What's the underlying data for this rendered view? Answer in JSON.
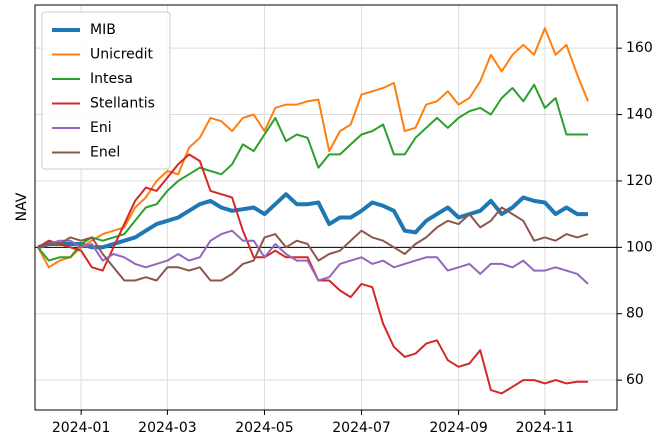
{
  "chart_data": {
    "type": "line",
    "y_label": "NAV",
    "categories": [
      null,
      null,
      null,
      null,
      "2024-01",
      null,
      null,
      null,
      null,
      null,
      null,
      null,
      "2024-03",
      null,
      null,
      null,
      null,
      null,
      null,
      null,
      null,
      "2024-05",
      null,
      null,
      null,
      null,
      null,
      null,
      null,
      null,
      "2024-07",
      null,
      null,
      null,
      null,
      null,
      null,
      null,
      null,
      "2024-09",
      null,
      null,
      null,
      null,
      null,
      null,
      null,
      "2024-11",
      null,
      null,
      null,
      null
    ],
    "series": [
      {
        "name": "MIB",
        "color": "#1f77b4",
        "linewidth": 4,
        "values": [
          100,
          101,
          101,
          101,
          101,
          100,
          100,
          101,
          102,
          103,
          105,
          107,
          108,
          109,
          111,
          113,
          114,
          112,
          111,
          111.5,
          112,
          110,
          113,
          116,
          113,
          113,
          113.5,
          107,
          109,
          109,
          111,
          113.5,
          112.5,
          111,
          105,
          104.5,
          108,
          110,
          112,
          109,
          110,
          111,
          114,
          110,
          112,
          115,
          114,
          113.5,
          110,
          112,
          110,
          110
        ]
      },
      {
        "name": "Unicredit",
        "color": "#ff7f0e",
        "linewidth": 2,
        "values": [
          100,
          94,
          96,
          97,
          100,
          102,
          104,
          105,
          106,
          112,
          115,
          120,
          123,
          122,
          130,
          133,
          139,
          138,
          135,
          139,
          140,
          135,
          142,
          143,
          143,
          144,
          144.5,
          129,
          135,
          137,
          146,
          147,
          148,
          149.5,
          135,
          136,
          143,
          144,
          147,
          143,
          145,
          150,
          158,
          153,
          158,
          161,
          158,
          166,
          158,
          161,
          152,
          144
        ]
      },
      {
        "name": "Intesa",
        "color": "#2ca02c",
        "linewidth": 2,
        "values": [
          100,
          96,
          97,
          97,
          101,
          103,
          102,
          103,
          104,
          108,
          112,
          113,
          117,
          120,
          122,
          124,
          123,
          122,
          125,
          131,
          129,
          134,
          139,
          132,
          134,
          133,
          124,
          128,
          128,
          131,
          134,
          135,
          137,
          128,
          128,
          133,
          136,
          139,
          136,
          139,
          141,
          142,
          140,
          145,
          148,
          144,
          149,
          142,
          145,
          134,
          134,
          134
        ]
      },
      {
        "name": "Stellantis",
        "color": "#d62728",
        "linewidth": 2,
        "values": [
          100,
          102,
          101,
          100,
          99,
          94,
          93,
          100,
          107,
          114,
          118,
          117,
          121,
          125,
          128,
          126,
          117,
          116,
          115,
          105,
          97,
          97,
          99,
          97,
          97,
          97,
          90,
          90,
          87,
          85,
          89,
          88,
          77,
          70,
          67,
          68,
          71,
          72,
          66,
          64,
          65,
          69,
          57,
          56,
          58,
          60,
          60,
          59,
          60,
          59,
          59.5,
          59.5
        ]
      },
      {
        "name": "Eni",
        "color": "#9467bd",
        "linewidth": 2,
        "values": [
          100,
          101,
          102,
          102,
          100,
          101,
          96,
          98,
          97,
          95,
          94,
          95,
          96,
          98,
          96,
          97,
          102,
          104,
          105,
          102,
          102,
          97,
          101,
          98,
          96,
          96,
          90,
          91,
          95,
          96,
          97,
          95,
          96,
          94,
          95,
          96,
          97,
          97,
          93,
          94,
          95,
          92,
          95,
          95,
          94,
          96,
          93,
          93,
          94,
          93,
          92,
          89
        ]
      },
      {
        "name": "Enel",
        "color": "#8c564b",
        "linewidth": 2,
        "values": [
          100,
          101,
          101,
          103,
          102,
          103,
          98,
          94,
          90,
          90,
          91,
          90,
          94,
          94,
          93,
          94,
          90,
          90,
          92,
          95,
          96,
          103,
          104,
          100,
          102,
          101,
          96,
          98,
          99,
          102,
          105,
          103,
          102,
          100,
          98,
          101,
          103,
          106,
          108,
          107,
          110,
          106,
          108,
          112,
          110,
          108,
          102,
          103,
          102,
          104,
          103,
          104
        ]
      }
    ],
    "ylim": [
      51,
      173
    ],
    "yticks": [
      60,
      80,
      100,
      120,
      140,
      160
    ],
    "y_axis_side": "right",
    "reference_line": 100,
    "grid": true,
    "legend": "upper-left"
  }
}
